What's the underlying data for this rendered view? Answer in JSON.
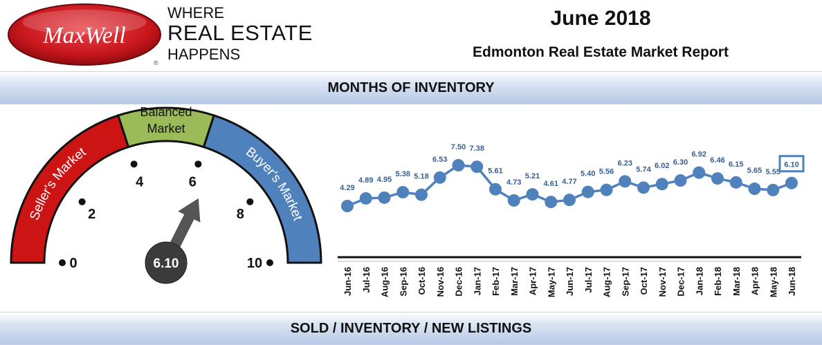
{
  "header": {
    "logo_text": "MaxWell",
    "tagline": [
      "WHERE",
      "REAL ESTATE",
      "HAPPENS"
    ],
    "registered_mark": "®",
    "date": "June 2018",
    "title": "Edmonton Real Estate Market Report"
  },
  "sections": {
    "inventory_heading": "MONTHS OF INVENTORY",
    "bottom_heading": "SOLD / INVENTORY / NEW LISTINGS"
  },
  "gauge": {
    "value": 6.1,
    "value_label": "6.10",
    "scale_min": 0,
    "scale_max": 10,
    "ticks": [
      "0",
      "2",
      "4",
      "6",
      "8",
      "10"
    ],
    "zones": [
      {
        "label": "Seller's Market",
        "from": 0,
        "to": 4,
        "color": "#cc1414"
      },
      {
        "label": "Balanced Market",
        "from": 4,
        "to": 6,
        "color": "#9bbb59"
      },
      {
        "label": "Buyer's Market",
        "from": 6,
        "to": 10,
        "color": "#4f81bd"
      }
    ],
    "balanced_lines": [
      "Balanced",
      "Market"
    ]
  },
  "chart_data": {
    "type": "line",
    "categories": [
      "Jun-16",
      "Jul-16",
      "Aug-16",
      "Sep-16",
      "Oct-16",
      "Nov-16",
      "Dec-16",
      "Jan-17",
      "Feb-17",
      "Mar-17",
      "Apr-17",
      "May-17",
      "Jun-17",
      "Jul-17",
      "Aug-17",
      "Sep-17",
      "Oct-17",
      "Nov-17",
      "Dec-17",
      "Jan-18",
      "Feb-18",
      "Mar-18",
      "Apr-18",
      "May-18",
      "Jun-18"
    ],
    "values": [
      4.29,
      4.89,
      4.95,
      5.38,
      5.18,
      6.53,
      7.5,
      7.38,
      5.61,
      4.73,
      5.21,
      4.61,
      4.77,
      5.4,
      5.56,
      6.23,
      5.74,
      6.02,
      6.3,
      6.92,
      6.46,
      6.15,
      5.65,
      5.55,
      6.1
    ],
    "labels": [
      "4.29",
      "4.89",
      "4.95",
      "5.38",
      "5.18",
      "6.53",
      "7.50",
      "7.38",
      "5.61",
      "4.73",
      "5.21",
      "4.61",
      "4.77",
      "5.40",
      "5.56",
      "6.23",
      "5.74",
      "6.02",
      "6.30",
      "6.92",
      "6.46",
      "6.15",
      "5.65",
      "5.55",
      "6.10"
    ],
    "highlighted_index": 24,
    "line_color": "#4f81bd",
    "grid": false
  },
  "colors": {
    "logo_red": "#c8161d",
    "band_blue": "#b7c9e6",
    "line_blue": "#4f81bd"
  }
}
